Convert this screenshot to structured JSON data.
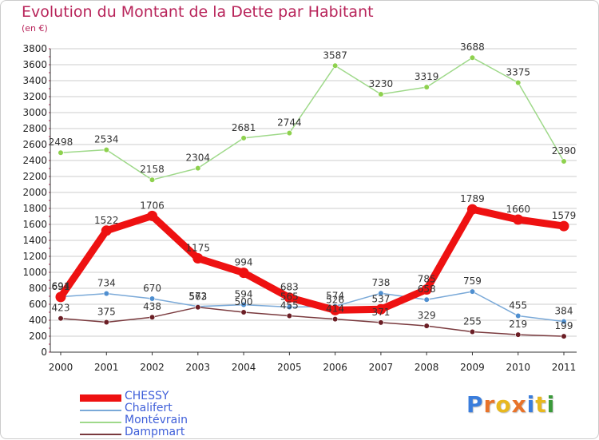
{
  "title": "Evolution du Montant de la Dette par Habitant",
  "subtitle": "(en €)",
  "logo_text": "Proxiti",
  "colors": {
    "title": "#b8245a",
    "grid": "#cccccc",
    "axis_text": "#222222",
    "legend_text": "#3f5fd9"
  },
  "chart_data": {
    "type": "line",
    "title": "Evolution du Montant de la Dette par Habitant",
    "subtitle": "(en €)",
    "x": [
      "2000",
      "2001",
      "2002",
      "2003",
      "2004",
      "2005",
      "2006",
      "2007",
      "2008",
      "2009",
      "2010",
      "2011"
    ],
    "ylim": [
      0,
      3800
    ],
    "yticks": [
      0,
      200,
      400,
      600,
      800,
      1000,
      1200,
      1400,
      1600,
      1800,
      2000,
      2200,
      2400,
      2600,
      2800,
      3000,
      3200,
      3400,
      3600,
      3800
    ],
    "grid": "horizontal",
    "legend_position": "bottom-left",
    "series": [
      {
        "name": "Montévrain",
        "color": "#8ed14e",
        "line_color": "#9fd98a",
        "values": [
          2498,
          2534,
          2158,
          2304,
          2681,
          2744,
          3587,
          3230,
          3319,
          3688,
          3375,
          2390
        ]
      },
      {
        "name": "Chalifert",
        "color": "#4f8fd0",
        "line_color": "#7aa9d8",
        "values": [
          694,
          734,
          670,
          572,
          594,
          565,
          574,
          738,
          658,
          759,
          455,
          384
        ]
      },
      {
        "name": "Dampmart",
        "color": "#6b1e25",
        "line_color": "#7a3a3e",
        "values": [
          423,
          375,
          438,
          563,
          500,
          455,
          414,
          371,
          329,
          255,
          219,
          199
        ]
      },
      {
        "name": "CHESSY",
        "color": "#ee1111",
        "line_color": "#ee1111",
        "values": [
          691,
          1522,
          1706,
          1175,
          994,
          683,
          526,
          537,
          785,
          1789,
          1660,
          1579
        ]
      }
    ],
    "legend_order": [
      "CHESSY",
      "Chalifert",
      "Montévrain",
      "Dampmart"
    ]
  }
}
